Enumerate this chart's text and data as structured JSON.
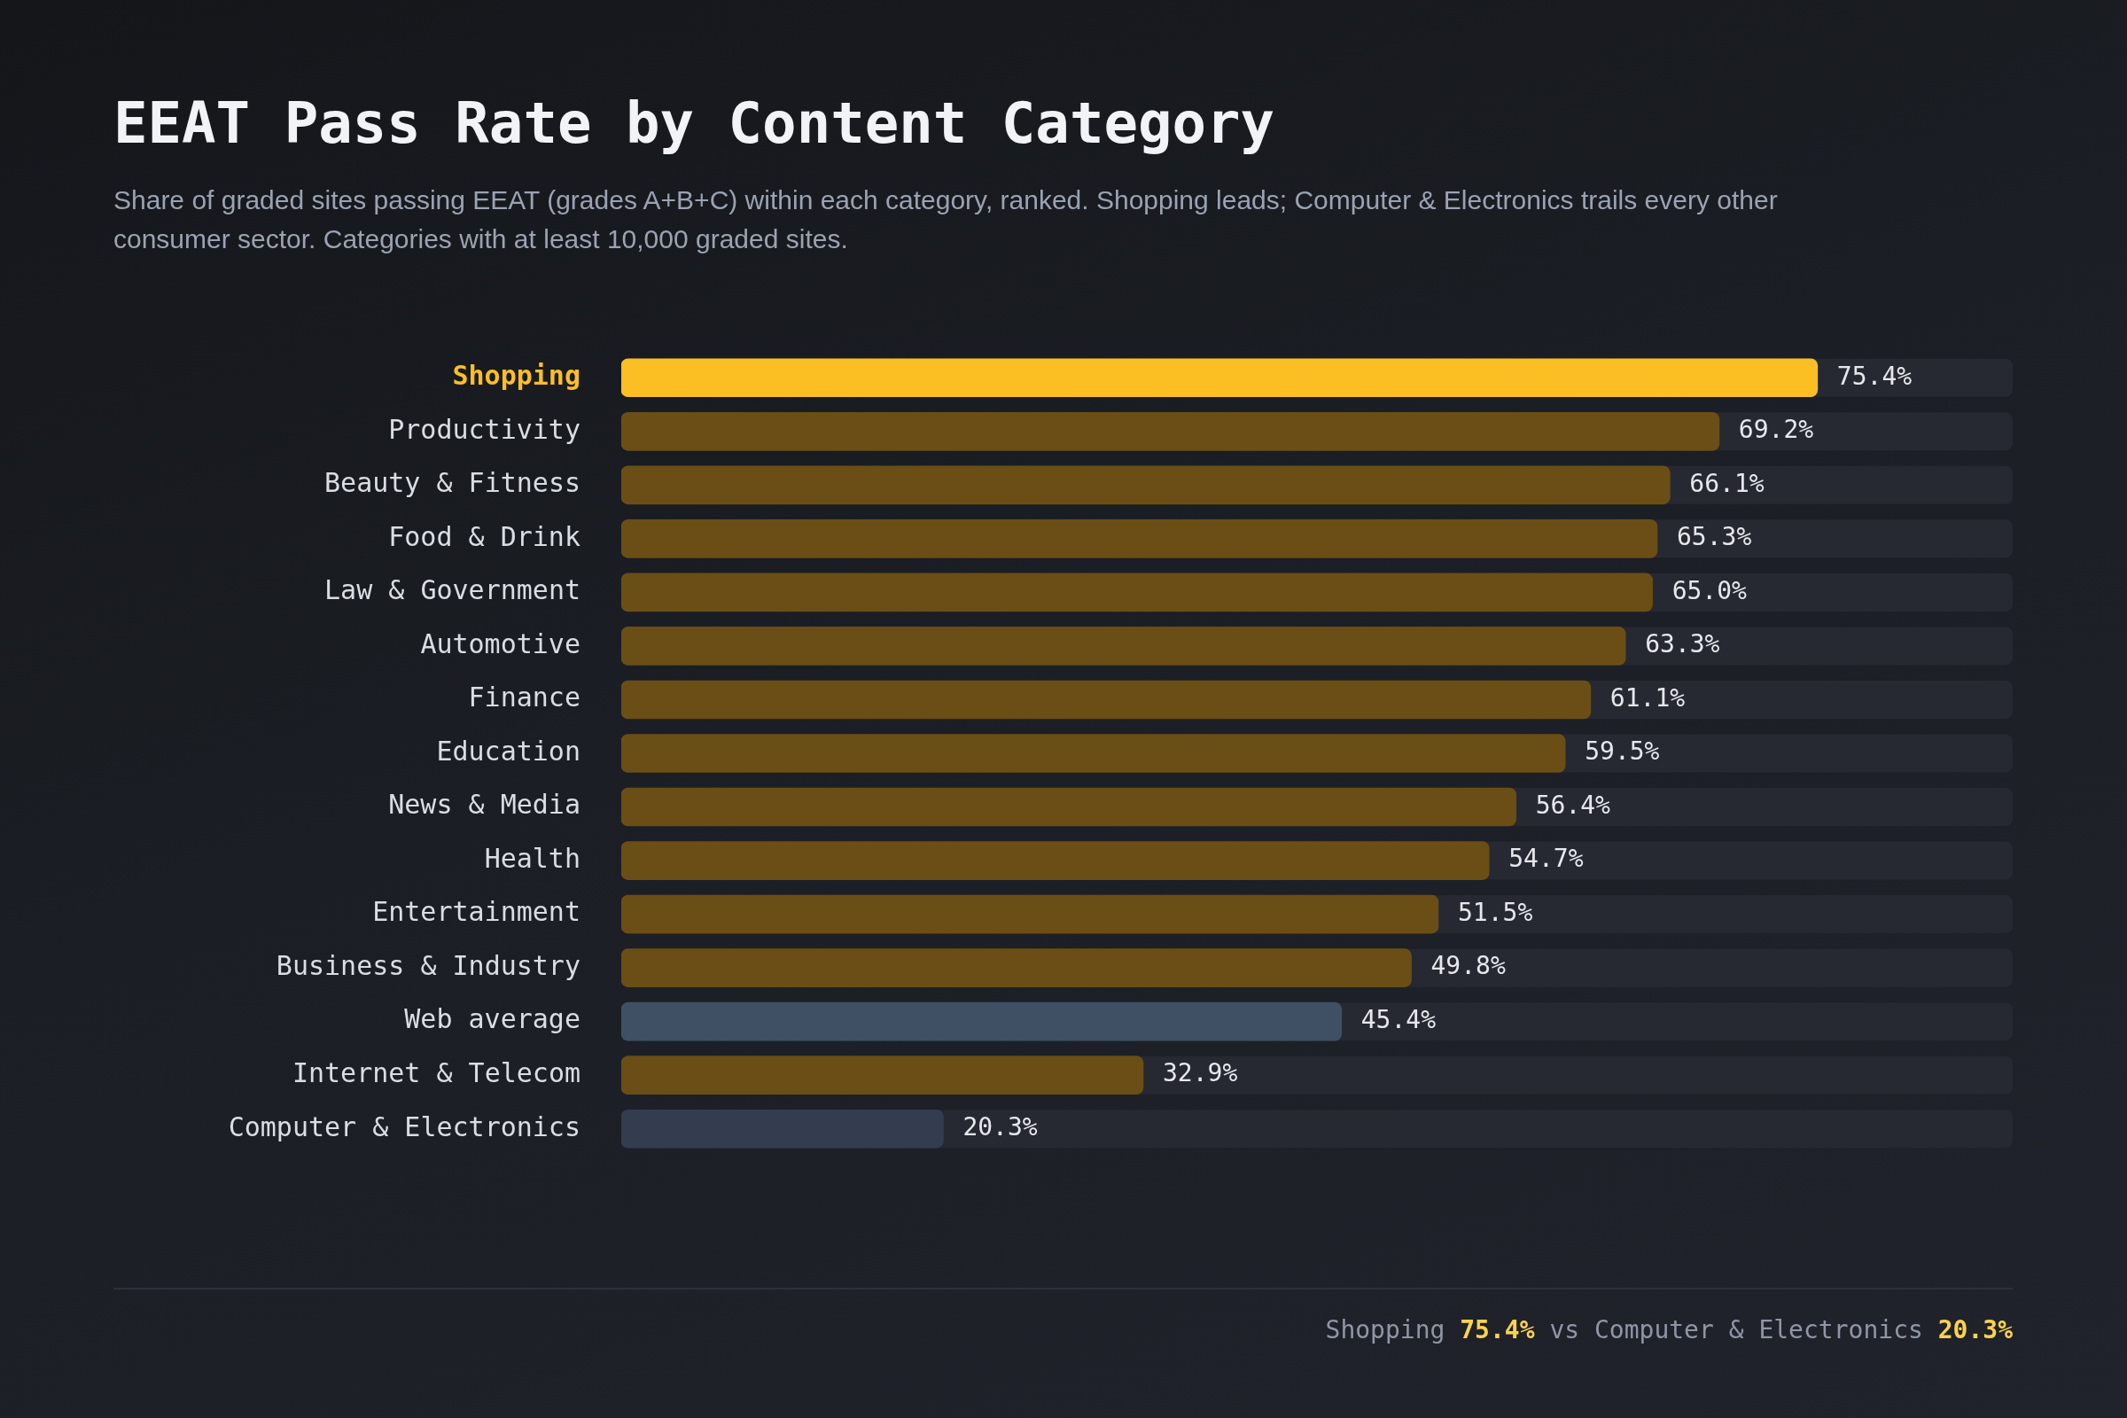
{
  "chart_data": {
    "type": "bar",
    "orientation": "horizontal",
    "title": "EEAT Pass Rate by Content Category",
    "subtitle": "Share of graded sites passing EEAT (grades A+B+C) within each category, ranked. Shopping leads; Computer & Electronics trails every other consumer sector. Categories with at least 10,000 graded sites.",
    "categories": [
      "Shopping",
      "Productivity",
      "Beauty & Fitness",
      "Food & Drink",
      "Law & Government",
      "Automotive",
      "Finance",
      "Education",
      "News & Media",
      "Health",
      "Entertainment",
      "Business & Industry",
      "Web average",
      "Internet & Telecom",
      "Computer & Electronics"
    ],
    "values": [
      75.4,
      69.2,
      66.1,
      65.3,
      65.0,
      63.3,
      61.1,
      59.5,
      56.4,
      54.7,
      51.5,
      49.8,
      45.4,
      32.9,
      20.3
    ],
    "colors": [
      "#fbbf24",
      "#6b4e16",
      "#6b4e16",
      "#6b4e16",
      "#6b4e16",
      "#6b4e16",
      "#6b4e16",
      "#6b4e16",
      "#6b4e16",
      "#6b4e16",
      "#6b4e16",
      "#6b4e16",
      "#3f5064",
      "#6b4e16",
      "#343d4f"
    ],
    "value_labels": [
      "75.4%",
      "69.2%",
      "66.1%",
      "65.3%",
      "65.0%",
      "63.3%",
      "61.1%",
      "59.5%",
      "56.4%",
      "54.7%",
      "51.5%",
      "49.8%",
      "45.4%",
      "32.9%",
      "20.3%"
    ],
    "xlim": [
      0,
      87.7
    ],
    "tick_labels": "y",
    "annotations": [
      "Shopping 75.4% vs Computer & Electronics 20.3%"
    ]
  }
}
